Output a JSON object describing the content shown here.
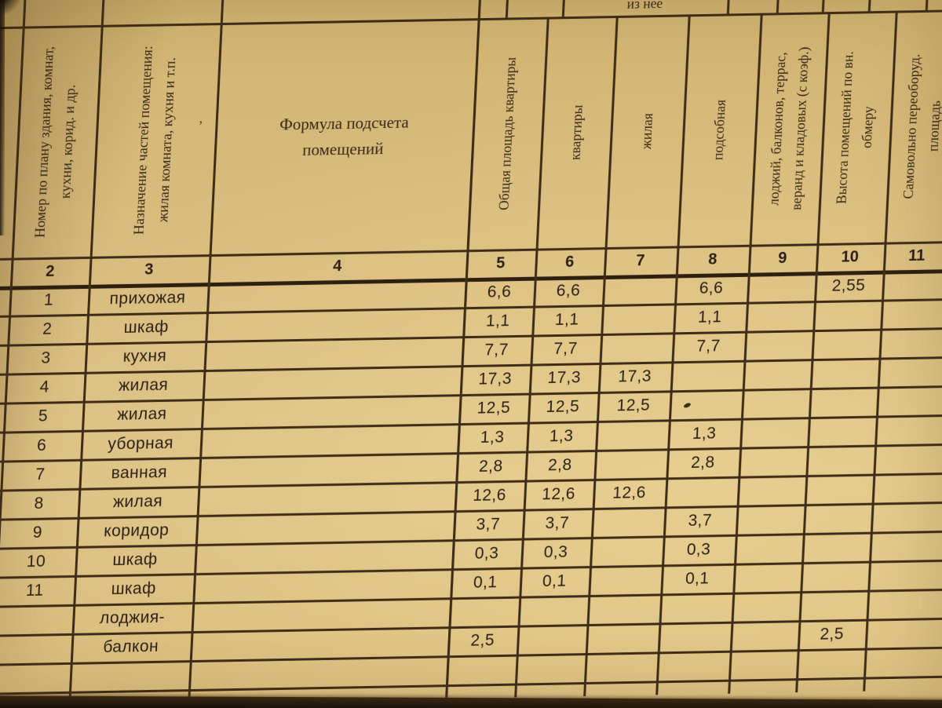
{
  "document": {
    "stub_header": "из нее",
    "columns": {
      "c2": {
        "number": "2",
        "header": "Номер по плану здания, комнат,\nкухни, корид. и др."
      },
      "c3": {
        "number": "3",
        "header": "Назначение частей помещения:\nжилая комната, кухня и т.п."
      },
      "c4": {
        "number": "4",
        "header": "Формула подсчета\nпомещений"
      },
      "c5": {
        "number": "5",
        "header": "Общая площадь квартиры"
      },
      "c6": {
        "number": "6",
        "header": "квартиры"
      },
      "c7": {
        "number": "7",
        "header": "жилая"
      },
      "c8": {
        "number": "8",
        "header": "подсобная"
      },
      "c9": {
        "number": "9",
        "header": "лоджий, балконов, террас,\nверанд и кладовых (с коэф.)"
      },
      "c10": {
        "number": "10",
        "header": "Высота помещений по вн.\nобмеру"
      },
      "c11": {
        "number": "11",
        "header": "Самовольно переоборуд.\nплощадь"
      }
    },
    "rows": [
      {
        "num": "1",
        "label": "прихожая",
        "c5": "6,6",
        "c6": "6,6",
        "c8": "6,6",
        "c10": "2,55"
      },
      {
        "num": "2",
        "label": "шкаф",
        "c5": "1,1",
        "c6": "1,1",
        "c8": "1,1"
      },
      {
        "num": "3",
        "label": "кухня",
        "c5": "7,7",
        "c6": "7,7",
        "c8": "7,7"
      },
      {
        "num": "4",
        "label": "жилая",
        "c5": "17,3",
        "c6": "17,3",
        "c7": "17,3"
      },
      {
        "num": "5",
        "label": "жилая",
        "c5": "12,5",
        "c6": "12,5",
        "c7": "12,5"
      },
      {
        "num": "6",
        "label": "уборная",
        "c5": "1,3",
        "c6": "1,3",
        "c8": "1,3"
      },
      {
        "num": "7",
        "label": "ванная",
        "c5": "2,8",
        "c6": "2,8",
        "c8": "2,8"
      },
      {
        "num": "8",
        "label": "жилая",
        "c5": "12,6",
        "c6": "12,6",
        "c7": "12,6"
      },
      {
        "num": "9",
        "label": "коридор",
        "c5": "3,7",
        "c6": "3,7",
        "c8": "3,7"
      },
      {
        "num": "10",
        "label": "шкаф",
        "c5": "0,3",
        "c6": "0,3",
        "c8": "0,3"
      },
      {
        "num": "11",
        "label": "шкаф",
        "c5": "0,1",
        "c6": "0,1",
        "c8": "0,1"
      },
      {
        "num": "",
        "label": "лоджия-"
      },
      {
        "num": "",
        "label": "балкон",
        "c5": "2,5",
        "c10": "2,5"
      },
      {
        "num": "",
        "label": ""
      }
    ],
    "colors": {
      "paper": "#d8bc7d",
      "ink": "#2b1f12",
      "line": "#3e2c16"
    }
  }
}
